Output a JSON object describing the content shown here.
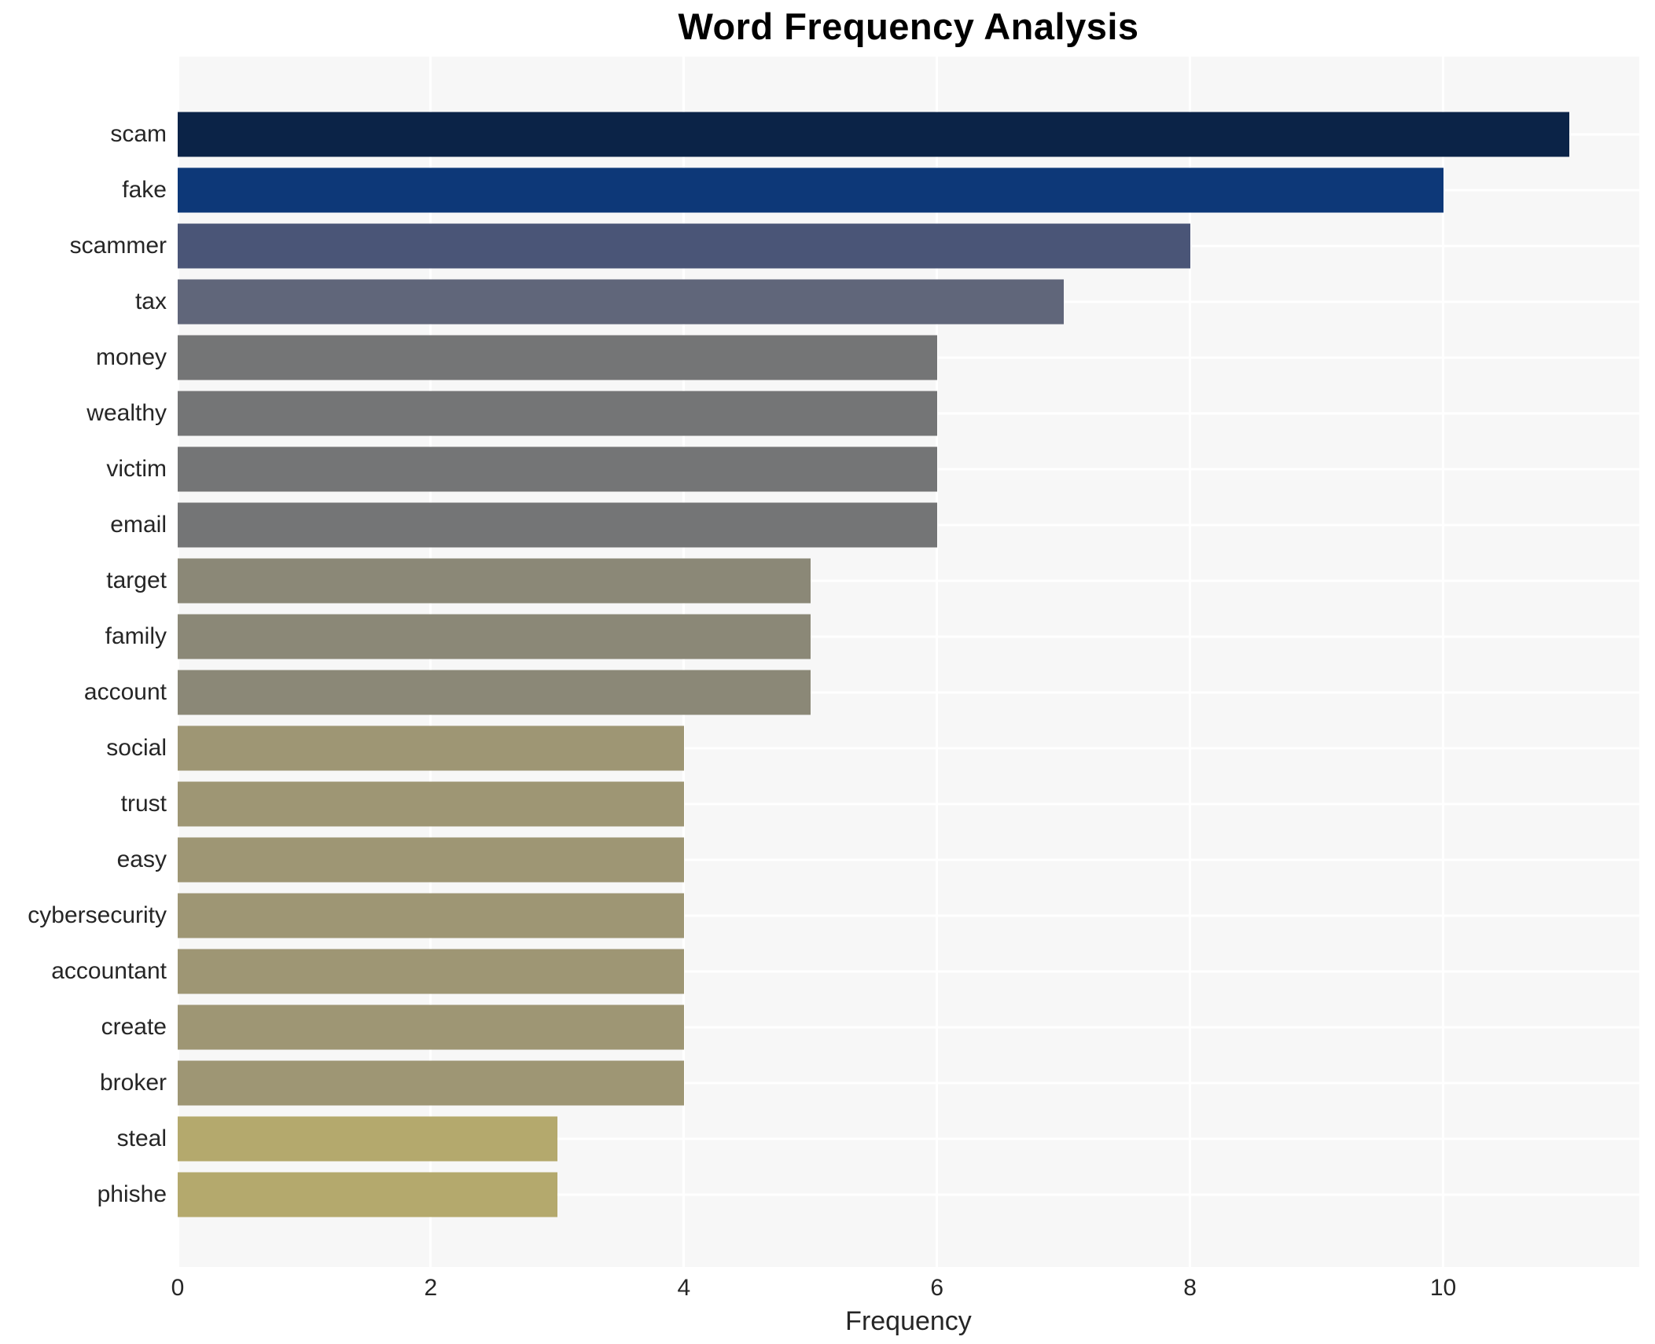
{
  "chart_data": {
    "type": "bar",
    "orientation": "horizontal",
    "title": "Word Frequency Analysis",
    "xlabel": "Frequency",
    "ylabel": "",
    "categories": [
      "scam",
      "fake",
      "scammer",
      "tax",
      "money",
      "wealthy",
      "victim",
      "email",
      "target",
      "family",
      "account",
      "social",
      "trust",
      "easy",
      "cybersecurity",
      "accountant",
      "create",
      "broker",
      "steal",
      "phishe"
    ],
    "values": [
      11,
      10,
      8,
      7,
      6,
      6,
      6,
      6,
      5,
      5,
      5,
      4,
      4,
      4,
      4,
      4,
      4,
      4,
      3,
      3
    ],
    "bar_colors": [
      "#0b2347",
      "#0d3878",
      "#4a5577",
      "#60667a",
      "#747576",
      "#747576",
      "#747576",
      "#747576",
      "#8b8877",
      "#8b8877",
      "#8b8877",
      "#9e9674",
      "#9e9674",
      "#9e9674",
      "#9e9674",
      "#9e9674",
      "#9e9674",
      "#9e9674",
      "#b4a96d",
      "#b4a96d"
    ],
    "xticks": [
      0,
      2,
      4,
      6,
      8,
      10
    ],
    "xlim": [
      0,
      11.55
    ],
    "grid": true,
    "legend_position": "none",
    "plot_background": "#f7f7f7",
    "grid_color": "#ffffff",
    "figure_background": "#ffffff",
    "text_color": "#262626"
  }
}
